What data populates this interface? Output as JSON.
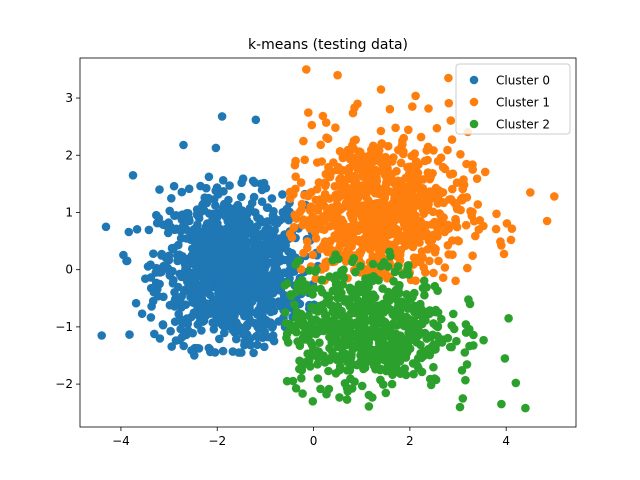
{
  "chart_data": {
    "type": "scatter",
    "title": "k-means (testing data)",
    "xlabel": "",
    "ylabel": "",
    "xlim": [
      -4.85,
      5.45
    ],
    "ylim": [
      -2.75,
      3.7
    ],
    "xticks": [
      -4,
      -2,
      0,
      2,
      4
    ],
    "yticks": [
      -2,
      -1,
      0,
      1,
      2,
      3
    ],
    "xtick_labels": [
      "−4",
      "−2",
      "0",
      "2",
      "4"
    ],
    "ytick_labels": [
      "−2",
      "−1",
      "0",
      "1",
      "2",
      "3"
    ],
    "grid": false,
    "legend_position": "top-right",
    "series": [
      {
        "name": "Cluster 0",
        "color": "#1f77b4",
        "n_points": 1150,
        "center": [
          -1.7,
          0.0
        ],
        "spread": [
          0.75,
          0.65
        ],
        "x_bounds": [
          -4.4,
          0.1
        ],
        "y_bounds": [
          -1.5,
          2.7
        ],
        "outliers": [
          [
            -4.4,
            -1.15
          ],
          [
            -2.7,
            2.18
          ],
          [
            -1.9,
            2.68
          ],
          [
            -1.2,
            2.62
          ],
          [
            -3.75,
            1.65
          ],
          [
            -1.5,
            -1.45
          ],
          [
            -3.2,
            1.4
          ]
        ]
      },
      {
        "name": "Cluster 1",
        "color": "#ff7f0e",
        "n_points": 800,
        "center": [
          1.3,
          1.0
        ],
        "spread": [
          0.95,
          0.7
        ],
        "x_bounds": [
          -0.5,
          5.0
        ],
        "y_bounds": [
          -0.3,
          3.5
        ],
        "outliers": [
          [
            -0.15,
            3.5
          ],
          [
            0.5,
            3.4
          ],
          [
            2.8,
            3.35
          ],
          [
            4.5,
            1.35
          ],
          [
            5.0,
            1.28
          ],
          [
            4.85,
            0.85
          ],
          [
            4.1,
            0.52
          ],
          [
            1.4,
            3.15
          ],
          [
            2.05,
            2.85
          ]
        ]
      },
      {
        "name": "Cluster 2",
        "color": "#2ca02c",
        "n_points": 650,
        "center": [
          1.0,
          -1.0
        ],
        "spread": [
          0.9,
          0.55
        ],
        "x_bounds": [
          -0.6,
          4.5
        ],
        "y_bounds": [
          -2.45,
          0.35
        ],
        "outliers": [
          [
            4.4,
            -2.42
          ],
          [
            3.9,
            -2.35
          ],
          [
            4.05,
            -0.85
          ],
          [
            4.2,
            -1.98
          ],
          [
            3.1,
            -2.25
          ],
          [
            -0.55,
            -1.95
          ]
        ]
      }
    ]
  }
}
